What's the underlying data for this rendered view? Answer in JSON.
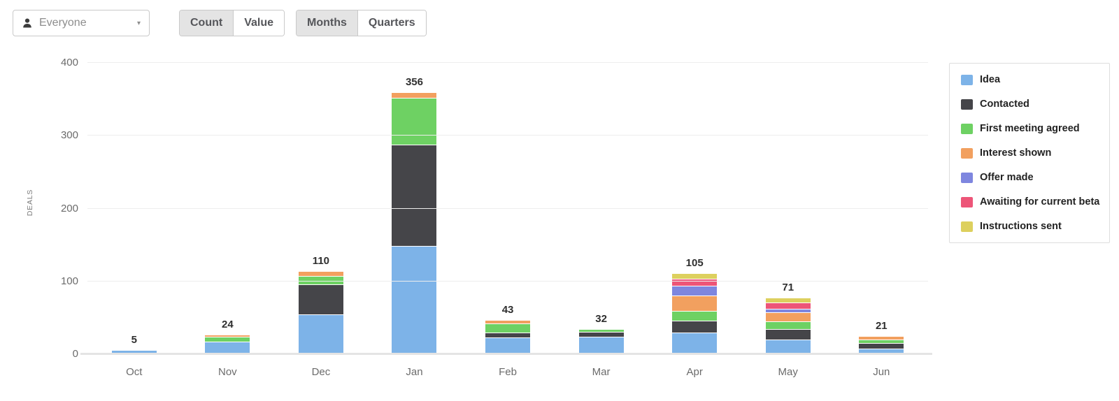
{
  "controls": {
    "owner_dropdown": {
      "value": "Everyone",
      "icon": "person-icon",
      "caret_icon": "▾"
    },
    "metric_toggle": {
      "options": [
        "Count",
        "Value"
      ],
      "selected": "Count"
    },
    "period_toggle": {
      "options": [
        "Months",
        "Quarters"
      ],
      "selected": "Months"
    }
  },
  "chart_data": {
    "type": "bar",
    "stacked": true,
    "title": "",
    "xlabel": "",
    "ylabel": "DEALS",
    "ylim": [
      0,
      400
    ],
    "yticks": [
      0,
      100,
      200,
      300,
      400
    ],
    "grid": true,
    "legend_position": "right",
    "categories": [
      "Oct",
      "Nov",
      "Dec",
      "Jan",
      "Feb",
      "Mar",
      "Apr",
      "May",
      "Jun"
    ],
    "totals": [
      5,
      24,
      110,
      356,
      43,
      32,
      105,
      71,
      21
    ],
    "series": [
      {
        "name": "Idea",
        "color": "#7db3e8",
        "values": [
          5,
          16,
          54,
          148,
          22,
          23,
          29,
          19,
          7
        ]
      },
      {
        "name": "Contacted",
        "color": "#454549",
        "values": [
          0,
          0,
          40,
          138,
          6,
          6,
          15,
          14,
          6
        ]
      },
      {
        "name": "First meeting agreed",
        "color": "#6ed163",
        "values": [
          0,
          6,
          11,
          63,
          11,
          3,
          13,
          9,
          4
        ]
      },
      {
        "name": "Interest shown",
        "color": "#f2a05f",
        "values": [
          0,
          2,
          5,
          7,
          4,
          0,
          20,
          12,
          4
        ]
      },
      {
        "name": "Offer made",
        "color": "#7e86df",
        "values": [
          0,
          0,
          0,
          0,
          0,
          0,
          12,
          4,
          0
        ]
      },
      {
        "name": "Awaiting for current beta",
        "color": "#ed5578",
        "values": [
          0,
          0,
          0,
          0,
          0,
          0,
          9,
          7,
          0
        ]
      },
      {
        "name": "Instructions sent",
        "color": "#ddd05e",
        "values": [
          0,
          0,
          0,
          0,
          0,
          0,
          7,
          6,
          0
        ]
      }
    ]
  }
}
